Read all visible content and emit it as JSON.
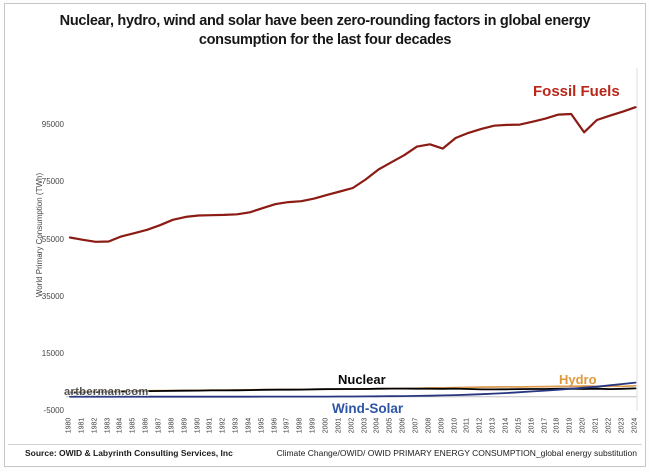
{
  "title": {
    "line1": "Nuclear, hydro, wind and solar have been zero-rounding factors in global energy",
    "line2": "consumption for the last four decades"
  },
  "watermark": "artberman.com",
  "footer": {
    "source_left": "Source: OWID & Labyrinth Consulting Services, Inc",
    "source_right": "Climate Change/OWID/ OWID PRIMARY ENERGY CONSUMPTION_global energy substitution"
  },
  "colors": {
    "fossil_line": "#8B1B13",
    "fossil_label": "#B9271A",
    "nuclear_line": "#000000",
    "nuclear_label": "#0a0a0a",
    "hydro_line": "#DE9A4E",
    "hydro_label": "#E09A3E",
    "windsolar_line": "#27367F",
    "windsolar_label": "#2E55A5",
    "axis_text": "#474747",
    "zero_line": "#c0c0c0",
    "plot_border": "#dddddd"
  },
  "chart_data": {
    "type": "line",
    "title": "Nuclear, hydro, wind and solar have been zero-rounding factors in global energy consumption for the last four decades",
    "xlabel": "",
    "ylabel": "World Primary Consumption (TWh)",
    "grid": false,
    "legend_position": "inline-labels",
    "xlim": [
      1980,
      2024
    ],
    "ylim": [
      -5000,
      115000
    ],
    "y_ticks": [
      -5000,
      15000,
      35000,
      55000,
      75000,
      95000
    ],
    "x": [
      1980,
      1981,
      1982,
      1983,
      1984,
      1985,
      1986,
      1987,
      1988,
      1989,
      1990,
      1991,
      1992,
      1993,
      1994,
      1995,
      1996,
      1997,
      1998,
      1999,
      2000,
      2001,
      2002,
      2003,
      2004,
      2005,
      2006,
      2007,
      2008,
      2009,
      2010,
      2011,
      2012,
      2013,
      2014,
      2015,
      2016,
      2017,
      2018,
      2019,
      2020,
      2021,
      2022,
      2023,
      2024
    ],
    "series": [
      {
        "name": "Fossil Fuels",
        "color": "#8B1B13",
        "label_color": "#B9271A",
        "values": [
          55700,
          54900,
          54200,
          54300,
          56100,
          57200,
          58400,
          60000,
          61900,
          62900,
          63400,
          63500,
          63600,
          63800,
          64500,
          66000,
          67400,
          68100,
          68400,
          69300,
          70600,
          71800,
          73000,
          76000,
          79500,
          82000,
          84500,
          87500,
          88300,
          86800,
          90500,
          92300,
          93700,
          94800,
          95100,
          95200,
          96200,
          97300,
          98700,
          98900,
          92500,
          96800,
          98300,
          99700,
          101300
        ]
      },
      {
        "name": "Hydro",
        "color": "#DE9A4E",
        "label_color": "#E09A3E",
        "values": [
          1800,
          1850,
          1900,
          1950,
          2000,
          2050,
          2100,
          2150,
          2150,
          2200,
          2250,
          2300,
          2300,
          2350,
          2400,
          2450,
          2500,
          2550,
          2550,
          2600,
          2650,
          2600,
          2650,
          2700,
          2750,
          2850,
          2900,
          2950,
          3050,
          3100,
          3200,
          3250,
          3350,
          3400,
          3450,
          3400,
          3500,
          3550,
          3600,
          3650,
          3750,
          3650,
          3700,
          3650,
          3800
        ]
      },
      {
        "name": "Nuclear",
        "color": "#000000",
        "label_color": "#0a0a0a",
        "values": [
          1400,
          1500,
          1600,
          1700,
          1800,
          1900,
          1950,
          2000,
          2050,
          2100,
          2150,
          2200,
          2200,
          2250,
          2300,
          2400,
          2450,
          2450,
          2500,
          2600,
          2650,
          2700,
          2700,
          2700,
          2800,
          2850,
          2850,
          2800,
          2800,
          2750,
          2850,
          2700,
          2550,
          2550,
          2600,
          2650,
          2700,
          2700,
          2750,
          2800,
          2700,
          2800,
          2650,
          2750,
          2900
        ]
      },
      {
        "name": "Wind-Solar",
        "color": "#27367F",
        "label_color": "#2E55A5",
        "values": [
          0,
          0,
          0,
          0,
          0,
          5,
          5,
          5,
          10,
          10,
          10,
          15,
          15,
          20,
          20,
          25,
          30,
          35,
          40,
          45,
          55,
          65,
          80,
          100,
          130,
          170,
          220,
          280,
          360,
          450,
          580,
          720,
          880,
          1070,
          1300,
          1560,
          1850,
          2150,
          2450,
          2800,
          3150,
          3500,
          4000,
          4450,
          4950
        ]
      }
    ]
  }
}
